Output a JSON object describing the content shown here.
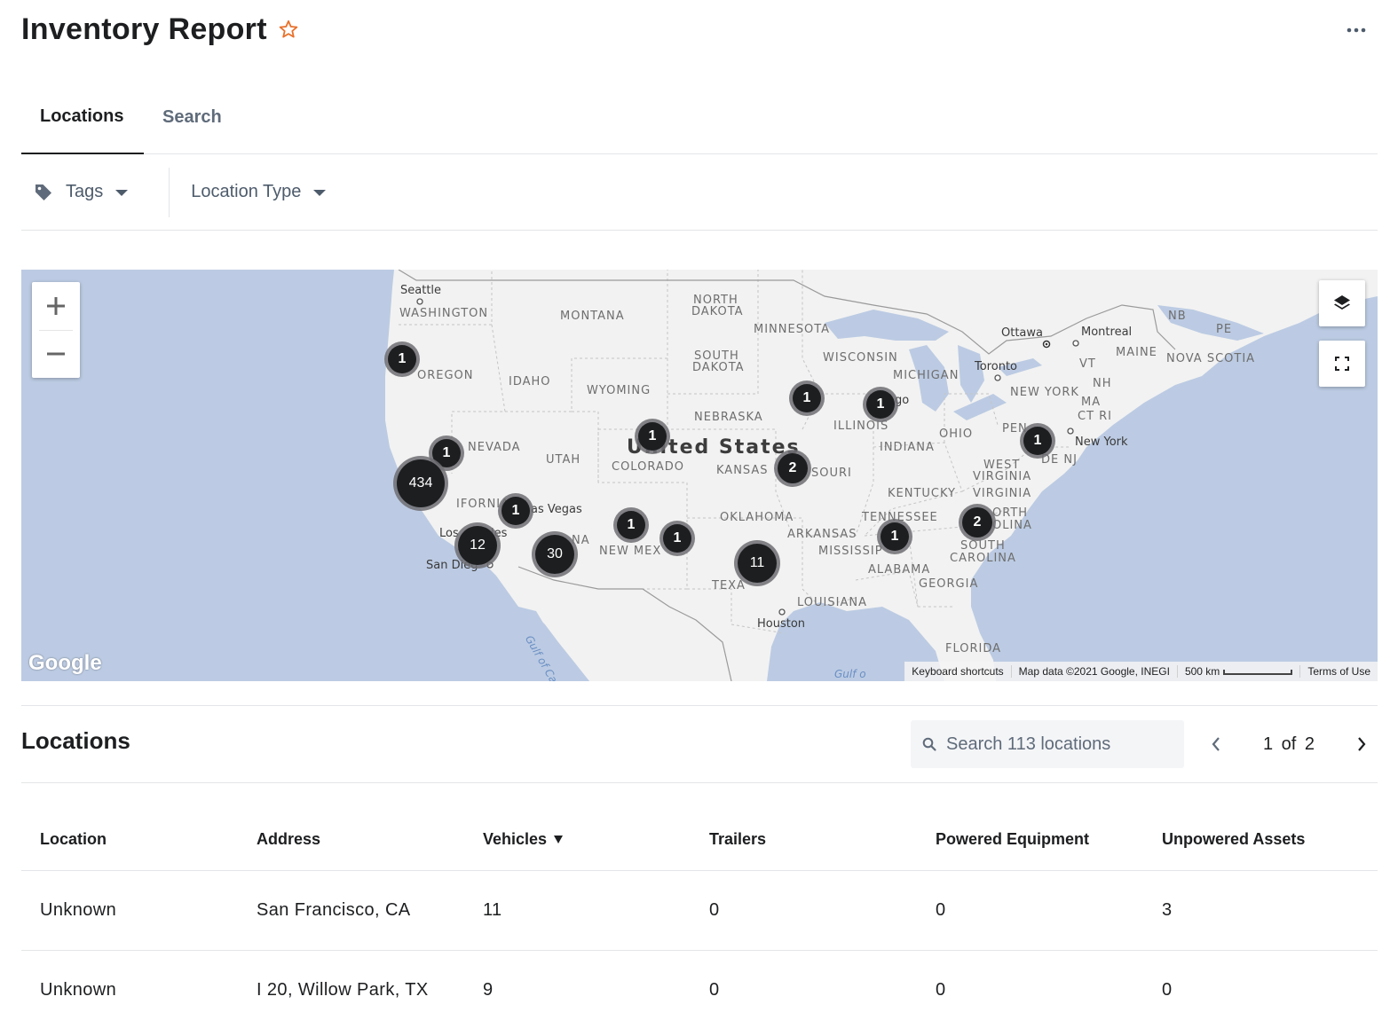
{
  "header": {
    "title": "Inventory Report",
    "star_icon": "star-outline-icon",
    "more_icon": "ellipsis-icon"
  },
  "tabs": [
    {
      "label": "Locations",
      "active": true
    },
    {
      "label": "Search",
      "active": false
    }
  ],
  "filters": {
    "tags_label": "Tags",
    "location_type_label": "Location Type"
  },
  "map": {
    "labels": {
      "seattle": "Seattle",
      "washington": "WASHINGTON",
      "montana": "MONTANA",
      "north_dakota_1": "NORTH",
      "north_dakota_2": "DAKOTA",
      "minnesota": "MINNESOTA",
      "ottawa": "Ottawa",
      "montreal": "Montreal",
      "nb": "NB",
      "pe": "PE",
      "maine": "MAINE",
      "nova_scotia": "NOVA SCOTIA",
      "oregon": "OREGON",
      "idaho": "IDAHO",
      "south_dakota_1": "SOUTH",
      "south_dakota_2": "DAKOTA",
      "wisconsin": "WISCONSIN",
      "michigan": "MICHIGAN",
      "toronto": "Toronto",
      "vt": "VT",
      "nh": "NH",
      "new_york_state": "NEW YORK",
      "ma": "MA",
      "ct_ri": "CT RI",
      "wyoming": "WYOMING",
      "nebraska": "NEBRASKA",
      "chicago": "go",
      "illinois": "ILLINOIS",
      "ohio": "OHIO",
      "penn": "PEN",
      "new_york_city": "New York",
      "nevada": "NEVADA",
      "utah": "UTAH",
      "united_states": "United States",
      "colorado": "COLORADO",
      "kansas": "KANSAS",
      "missouri": "SOURI",
      "indiana": "INDIANA",
      "de_nj": "DE NJ",
      "west_virginia_1": "WEST",
      "west_virginia_2": "VIRGINIA",
      "virginia": "VIRGINIA",
      "kentucky": "KENTUCKY",
      "california": "IFORNIA",
      "las_vegas": "as Vegas",
      "oklahoma": "OKLAHOMA",
      "tennessee": "TENNESSEE",
      "north_carolina_1": "ORTH",
      "north_carolina_2": "OLINA",
      "los_angeles_1": "Los",
      "los_angeles_2": "les",
      "arizona": "NA",
      "arkansas": "ARKANSAS",
      "mississippi": "MISSISSIP",
      "san_diego": "San Dieg",
      "new_mexico": "NEW MEX",
      "alabama": "ALABAMA",
      "south_carolina_1": "SOUTH",
      "south_carolina_2": "CAROLINA",
      "texas": "TEXA",
      "georgia": "GEORGIA",
      "louisiana": "LOUISIANA",
      "houston": "Houston",
      "florida": "FLORIDA",
      "gulf_california": "Gulf of Californ",
      "gulf_mexico": "Gulf o"
    },
    "clusters": [
      {
        "count": "1"
      },
      {
        "count": "1"
      },
      {
        "count": "1"
      },
      {
        "count": "1"
      },
      {
        "count": "1"
      },
      {
        "count": "434"
      },
      {
        "count": "2"
      },
      {
        "count": "1"
      },
      {
        "count": "1"
      },
      {
        "count": "1"
      },
      {
        "count": "1"
      },
      {
        "count": "12"
      },
      {
        "count": "30"
      },
      {
        "count": "11"
      },
      {
        "count": "1"
      },
      {
        "count": "2"
      }
    ],
    "google_logo": "Google",
    "attribution": {
      "keyboard": "Keyboard shortcuts",
      "mapdata": "Map data ©2021 Google, INEGI",
      "scale": "500 km",
      "terms": "Terms of Use"
    },
    "controls": {
      "zoom_in_icon": "plus-icon",
      "zoom_out_icon": "minus-icon",
      "layers_icon": "layers-icon",
      "fullscreen_icon": "fullscreen-icon"
    }
  },
  "locations": {
    "title": "Locations",
    "search_placeholder": "Search 113 locations",
    "pager": "1 of 2",
    "columns": [
      "Location",
      "Address",
      "Vehicles",
      "Trailers",
      "Powered Equipment",
      "Unpowered Assets"
    ],
    "sorted_column": "Vehicles",
    "rows": [
      [
        "Unknown",
        "San Francisco, CA",
        "11",
        "0",
        "0",
        "3"
      ],
      [
        "Unknown",
        "I 20, Willow Park, TX",
        "9",
        "0",
        "0",
        "0"
      ]
    ]
  },
  "colors": {
    "accent_star": "#e8702a",
    "cluster": "#1d1e20",
    "water": "#aadaff",
    "land": "#f2f2f2"
  }
}
